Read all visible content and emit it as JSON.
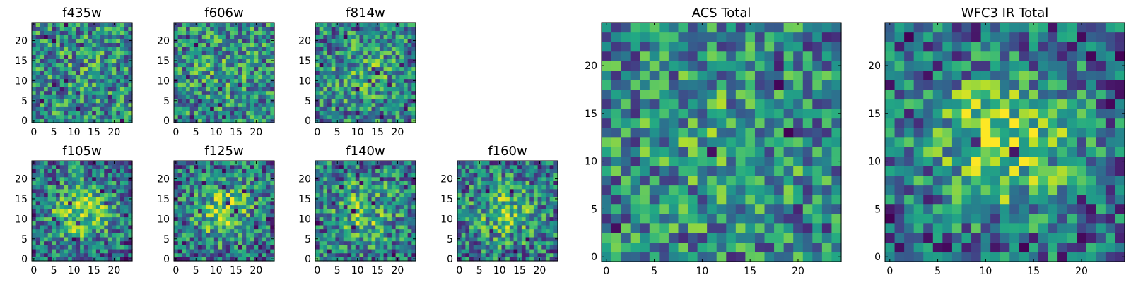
{
  "chart_data": [
    {
      "type": "heatmap",
      "title": "f435w",
      "grid_size": 25,
      "xticks": [
        0,
        5,
        10,
        15,
        20
      ],
      "yticks": [
        0,
        5,
        10,
        15,
        20
      ],
      "xlim": [
        0,
        24
      ],
      "ylim": [
        0,
        24
      ],
      "colormap": "viridis",
      "seed": 11,
      "blob_strength": 0.05,
      "dark_fraction": 0.04
    },
    {
      "type": "heatmap",
      "title": "f606w",
      "grid_size": 25,
      "xticks": [
        0,
        5,
        10,
        15,
        20
      ],
      "yticks": [
        0,
        5,
        10,
        15,
        20
      ],
      "xlim": [
        0,
        24
      ],
      "ylim": [
        0,
        24
      ],
      "colormap": "viridis",
      "seed": 23,
      "blob_strength": 0.08,
      "dark_fraction": 0.03
    },
    {
      "type": "heatmap",
      "title": "f814w",
      "grid_size": 25,
      "xticks": [
        0,
        5,
        10,
        15,
        20
      ],
      "yticks": [
        0,
        5,
        10,
        15,
        20
      ],
      "xlim": [
        0,
        24
      ],
      "ylim": [
        0,
        24
      ],
      "colormap": "viridis",
      "seed": 37,
      "blob_strength": 0.18,
      "dark_fraction": 0.04
    },
    {
      "type": "heatmap",
      "title": "f105w",
      "grid_size": 25,
      "xticks": [
        0,
        5,
        10,
        15,
        20
      ],
      "yticks": [
        0,
        5,
        10,
        15,
        20
      ],
      "xlim": [
        0,
        24
      ],
      "ylim": [
        0,
        24
      ],
      "colormap": "viridis",
      "seed": 41,
      "blob_strength": 0.45,
      "dark_fraction": 0.05
    },
    {
      "type": "heatmap",
      "title": "f125w",
      "grid_size": 25,
      "xticks": [
        0,
        5,
        10,
        15,
        20
      ],
      "yticks": [
        0,
        5,
        10,
        15,
        20
      ],
      "xlim": [
        0,
        24
      ],
      "ylim": [
        0,
        24
      ],
      "colormap": "viridis",
      "seed": 53,
      "blob_strength": 0.4,
      "dark_fraction": 0.05
    },
    {
      "type": "heatmap",
      "title": "f140w",
      "grid_size": 25,
      "xticks": [
        0,
        5,
        10,
        15,
        20
      ],
      "yticks": [
        0,
        5,
        10,
        15,
        20
      ],
      "xlim": [
        0,
        24
      ],
      "ylim": [
        0,
        24
      ],
      "colormap": "viridis",
      "seed": 67,
      "blob_strength": 0.3,
      "dark_fraction": 0.05
    },
    {
      "type": "heatmap",
      "title": "f160w",
      "grid_size": 25,
      "xticks": [
        0,
        5,
        10,
        15,
        20
      ],
      "yticks": [
        0,
        5,
        10,
        15,
        20
      ],
      "xlim": [
        0,
        24
      ],
      "ylim": [
        0,
        24
      ],
      "colormap": "viridis",
      "seed": 79,
      "blob_strength": 0.3,
      "dark_fraction": 0.05
    },
    {
      "type": "heatmap",
      "title": "ACS Total",
      "grid_size": 25,
      "xticks": [
        0,
        5,
        10,
        15,
        20
      ],
      "yticks": [
        0,
        5,
        10,
        15,
        20
      ],
      "xlim": [
        0,
        24
      ],
      "ylim": [
        0,
        24
      ],
      "colormap": "viridis",
      "seed": 97,
      "blob_strength": 0.15,
      "dark_fraction": 0.025
    },
    {
      "type": "heatmap",
      "title": "WFC3 IR Total",
      "grid_size": 25,
      "xticks": [
        0,
        5,
        10,
        15,
        20
      ],
      "yticks": [
        0,
        5,
        10,
        15,
        20
      ],
      "xlim": [
        0,
        24
      ],
      "ylim": [
        0,
        24
      ],
      "colormap": "viridis",
      "seed": 113,
      "blob_strength": 0.55,
      "dark_fraction": 0.02
    }
  ]
}
